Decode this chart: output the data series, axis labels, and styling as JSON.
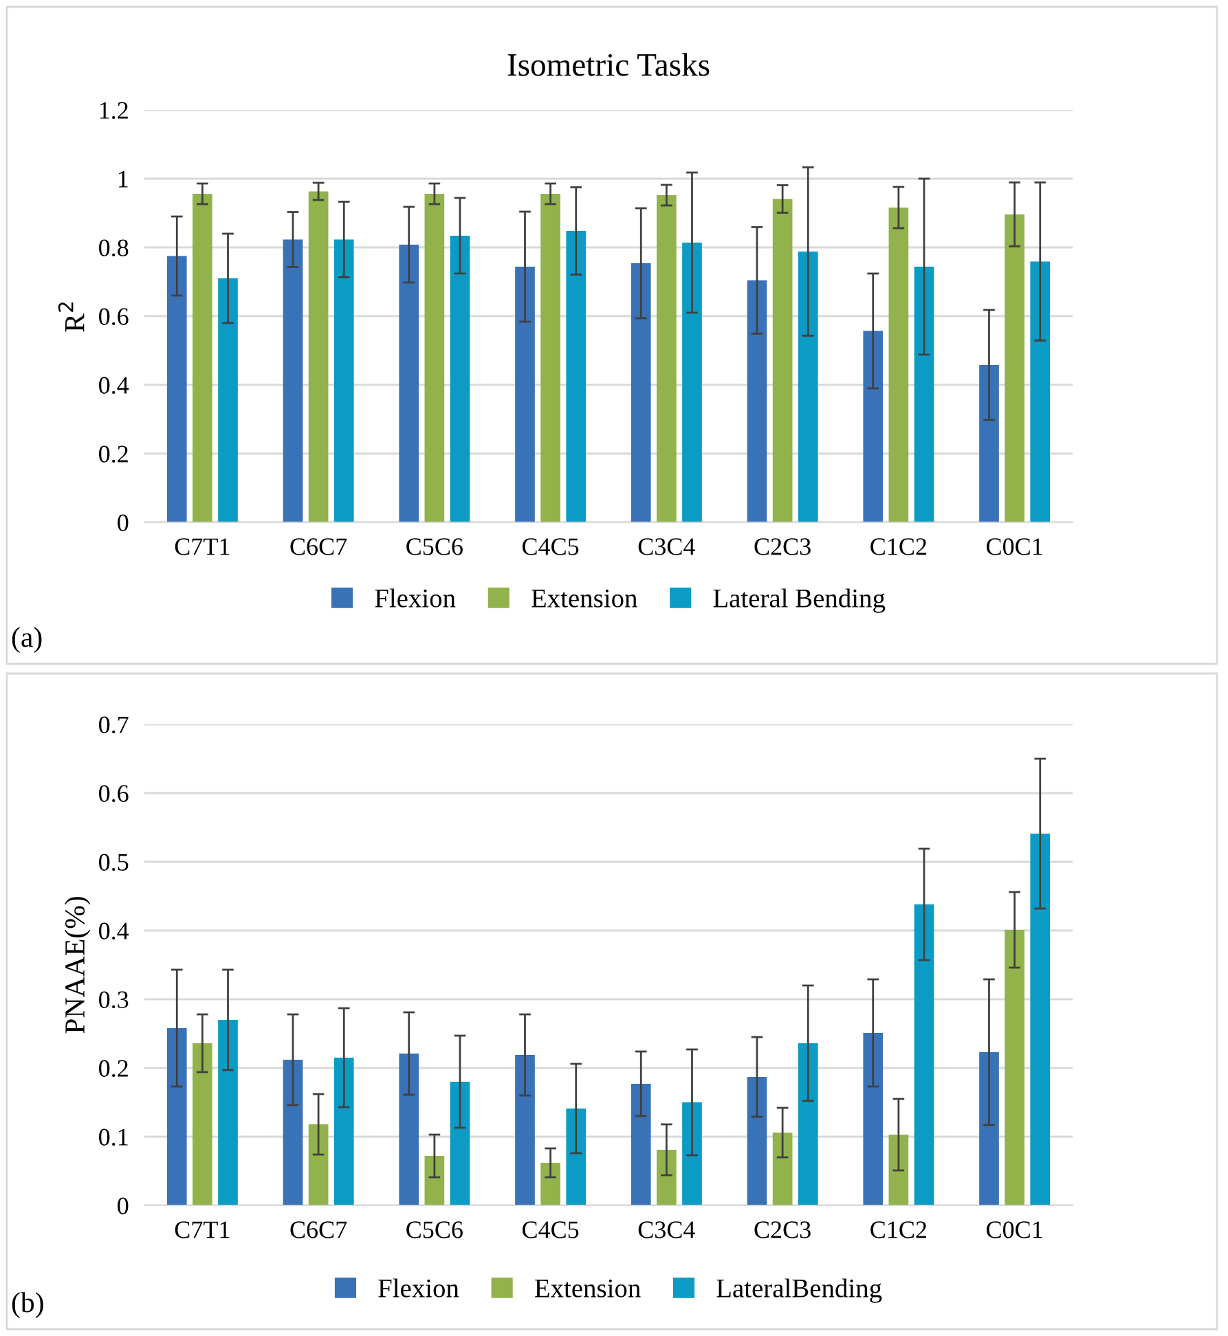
{
  "chart_data": [
    {
      "type": "bar",
      "title": "Isometric Tasks",
      "ylabel": "R$^{2}$",
      "annotations": [
        "(a)"
      ],
      "categories": [
        "C7T1",
        "C6C7",
        "C5C6",
        "C4C5",
        "C3C4",
        "C2C3",
        "C1C2",
        "C0C1"
      ],
      "series": [
        {
          "name": "Flexion",
          "color": "#3a72b8",
          "values": [
            0.775,
            0.823,
            0.808,
            0.744,
            0.754,
            0.704,
            0.557,
            0.458
          ],
          "errors": [
            0.115,
            0.08,
            0.11,
            0.16,
            0.16,
            0.155,
            0.167,
            0.16
          ]
        },
        {
          "name": "Extension",
          "color": "#92b24c",
          "values": [
            0.956,
            0.963,
            0.956,
            0.956,
            0.952,
            0.941,
            0.916,
            0.896
          ],
          "errors": [
            0.03,
            0.025,
            0.03,
            0.03,
            0.03,
            0.04,
            0.06,
            0.093
          ]
        },
        {
          "name": "Lateral Bending",
          "color": "#0c9bc4",
          "values": [
            0.71,
            0.823,
            0.834,
            0.848,
            0.814,
            0.788,
            0.744,
            0.759
          ],
          "errors": [
            0.13,
            0.11,
            0.11,
            0.127,
            0.204,
            0.245,
            0.256,
            0.23
          ]
        }
      ],
      "ylim": [
        0,
        1.2
      ],
      "yticks": [
        0,
        0.2,
        0.4,
        0.6,
        0.8,
        1,
        1.2
      ],
      "grid": "y",
      "legend": "bottom"
    },
    {
      "type": "bar",
      "ylabel": "PNAAE(%)",
      "annotations": [
        "(b)"
      ],
      "categories": [
        "C7T1",
        "C6C7",
        "C5C6",
        "C4C5",
        "C3C4",
        "C2C3",
        "C1C2",
        "C0C1"
      ],
      "series": [
        {
          "name": "Flexion",
          "color": "#3a72b8",
          "values": [
            0.258,
            0.212,
            0.221,
            0.219,
            0.177,
            0.187,
            0.251,
            0.223
          ],
          "errors": [
            0.085,
            0.066,
            0.06,
            0.059,
            0.047,
            0.058,
            0.078,
            0.106
          ]
        },
        {
          "name": "Extension",
          "color": "#92b24c",
          "values": [
            0.236,
            0.118,
            0.072,
            0.062,
            0.081,
            0.106,
            0.103,
            0.401
          ],
          "errors": [
            0.042,
            0.044,
            0.031,
            0.021,
            0.037,
            0.036,
            0.052,
            0.055
          ]
        },
        {
          "name": "LateralBending",
          "color": "#0c9bc4",
          "values": [
            0.27,
            0.215,
            0.18,
            0.141,
            0.15,
            0.236,
            0.438,
            0.541
          ],
          "errors": [
            0.073,
            0.072,
            0.067,
            0.065,
            0.077,
            0.084,
            0.081,
            0.109
          ]
        }
      ],
      "ylim": [
        0,
        0.7
      ],
      "yticks": [
        0,
        0.1,
        0.2,
        0.3,
        0.4,
        0.5,
        0.6,
        0.7
      ],
      "grid": "y",
      "legend": "bottom"
    }
  ]
}
